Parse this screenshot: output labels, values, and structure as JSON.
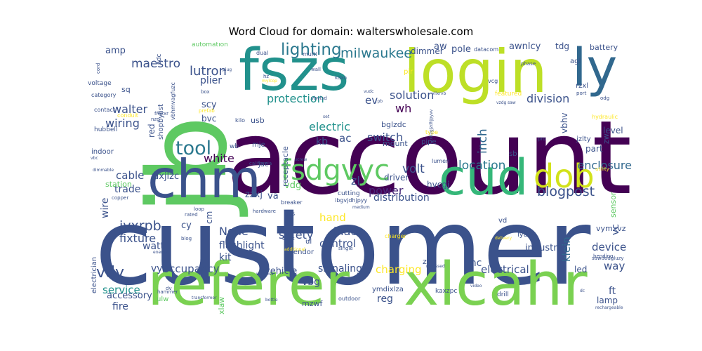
{
  "chart_data": {
    "type": "word_cloud",
    "title": "Word Cloud for domain: walterswholesale.com",
    "background": "#ffffff",
    "words": [
      {
        "text": "customer",
        "weight": 100,
        "color": "#3b528b"
      },
      {
        "text": "account",
        "weight": 82,
        "color": "#440154"
      },
      {
        "text": "jb",
        "weight": 78,
        "color": "#5ec962"
      },
      {
        "text": "referer",
        "weight": 55,
        "color": "#7ad151"
      },
      {
        "text": "login",
        "weight": 54,
        "color": "#bddf26"
      },
      {
        "text": "fszs",
        "weight": 53,
        "color": "#21918c"
      },
      {
        "text": "chm",
        "weight": 50,
        "color": "#3b528b"
      },
      {
        "text": "cud",
        "weight": 48,
        "color": "#35b779"
      },
      {
        "text": "xlcahr",
        "weight": 48,
        "color": "#7ad151"
      },
      {
        "text": "ly",
        "weight": 45,
        "color": "#31688e"
      },
      {
        "text": "dob",
        "weight": 30,
        "color": "#d2e21b"
      },
      {
        "text": "fsdgvyc",
        "weight": 28,
        "color": "#5ec962"
      },
      {
        "text": "tool",
        "weight": 22,
        "color": "#2a788e"
      },
      {
        "text": "lighting",
        "weight": 16,
        "color": "#2a788e"
      },
      {
        "text": "milwaukee",
        "weight": 14,
        "color": "#2a788e"
      },
      {
        "text": "blogpost",
        "weight": 15,
        "color": "#3b528b"
      },
      {
        "text": "vdy",
        "weight": 18,
        "color": "#3b528b"
      },
      {
        "text": "jyxrpb",
        "weight": 14,
        "color": "#3b528b"
      },
      {
        "text": "maestro",
        "weight": 13,
        "color": "#3b528b"
      },
      {
        "text": "lutron",
        "weight": 14,
        "color": "#3b528b"
      },
      {
        "text": "volt",
        "weight": 14,
        "color": "#3b528b"
      },
      {
        "text": "location",
        "weight": 13,
        "color": "#2a788e"
      },
      {
        "text": "enclosure",
        "weight": 13,
        "color": "#31688e"
      },
      {
        "text": "inch",
        "weight": 13,
        "color": "#31688e"
      },
      {
        "text": "electric",
        "weight": 13,
        "color": "#21918c"
      },
      {
        "text": "protection",
        "weight": 13,
        "color": "#21918c"
      },
      {
        "text": "solution",
        "weight": 13,
        "color": "#3b528b"
      },
      {
        "text": "division",
        "weight": 13,
        "color": "#3b528b"
      },
      {
        "text": "switch",
        "weight": 13,
        "color": "#3b528b"
      },
      {
        "text": "wiring",
        "weight": 13,
        "color": "#3b528b"
      },
      {
        "text": "walter",
        "weight": 13,
        "color": "#3b528b"
      },
      {
        "text": "white",
        "weight": 13,
        "color": "#440154"
      },
      {
        "text": "power",
        "weight": 13,
        "color": "#482878"
      },
      {
        "text": "None",
        "weight": 13,
        "color": "#3b528b"
      },
      {
        "text": "fixture",
        "weight": 13,
        "color": "#3b528b"
      },
      {
        "text": "safety",
        "weight": 12,
        "color": "#3b528b"
      },
      {
        "text": "black",
        "weight": 13,
        "color": "#3b528b"
      },
      {
        "text": "control",
        "weight": 12,
        "color": "#3b528b"
      },
      {
        "text": "hand",
        "weight": 12,
        "color": "#fde725"
      },
      {
        "text": "charging",
        "weight": 13,
        "color": "#fde725"
      },
      {
        "text": "electrical",
        "weight": 13,
        "color": "#3b528b"
      },
      {
        "text": "occupancy",
        "weight": 12,
        "color": "#3b528b"
      },
      {
        "text": "service",
        "weight": 12,
        "color": "#21918c"
      },
      {
        "text": "klein",
        "weight": 12,
        "color": "#31688e"
      },
      {
        "text": "device",
        "weight": 12,
        "color": "#3b528b"
      },
      {
        "text": "way",
        "weight": 12,
        "color": "#3b528b"
      },
      {
        "text": "cable",
        "weight": 12,
        "color": "#3b528b"
      },
      {
        "text": "trade",
        "weight": 11,
        "color": "#3b528b"
      },
      {
        "text": "wire",
        "weight": 11,
        "color": "#3b528b"
      },
      {
        "text": "signaling",
        "weight": 11,
        "color": "#3b528b"
      },
      {
        "text": "distribution",
        "weight": 11,
        "color": "#3b528b"
      },
      {
        "text": "flashlight",
        "weight": 11,
        "color": "#3b528b"
      },
      {
        "text": "watt",
        "weight": 11,
        "color": "#3b528b"
      },
      {
        "text": "kit",
        "weight": 11,
        "color": "#3b528b"
      },
      {
        "text": "vehicle",
        "weight": 10,
        "color": "#3b528b"
      },
      {
        "text": "industrial",
        "weight": 10,
        "color": "#3b528b"
      },
      {
        "text": "accessory",
        "weight": 10,
        "color": "#3b528b"
      },
      {
        "text": "fire",
        "weight": 11,
        "color": "#3b528b"
      },
      {
        "text": "reg",
        "weight": 11,
        "color": "#3b528b"
      },
      {
        "text": "ft",
        "weight": 11,
        "color": "#3b528b"
      },
      {
        "text": "lamp",
        "weight": 10,
        "color": "#3b528b"
      },
      {
        "text": "led",
        "weight": 10,
        "color": "#3b528b"
      },
      {
        "text": "vc",
        "weight": 10,
        "color": "#3b528b"
      },
      {
        "text": "vbg",
        "weight": 11,
        "color": "#3b528b"
      },
      {
        "text": "vy",
        "weight": 11,
        "color": "#3b528b"
      },
      {
        "text": "mc",
        "weight": 11,
        "color": "#3b528b"
      },
      {
        "text": "ac",
        "weight": 13,
        "color": "#3b528b"
      },
      {
        "text": "kb",
        "weight": 12,
        "color": "#3b528b"
      },
      {
        "text": "wh",
        "weight": 13,
        "color": "#440154"
      },
      {
        "text": "ev",
        "weight": 13,
        "color": "#3b528b"
      },
      {
        "text": "zl",
        "weight": 13,
        "color": "#3b528b"
      },
      {
        "text": "bglzdc",
        "weight": 10,
        "color": "#3b528b"
      },
      {
        "text": "hvcgj",
        "weight": 10,
        "color": "#3b528b"
      },
      {
        "text": "driver",
        "weight": 10,
        "color": "#3b528b"
      },
      {
        "text": "zzxj",
        "weight": 11,
        "color": "#3b528b"
      },
      {
        "text": "va",
        "weight": 11,
        "color": "#3b528b"
      },
      {
        "text": "vdg",
        "weight": 11,
        "color": "#5ec962"
      },
      {
        "text": "dxjlzc",
        "weight": 11,
        "color": "#3b528b"
      },
      {
        "text": "cm",
        "weight": 11,
        "color": "#3b528b"
      },
      {
        "text": "cy",
        "weight": 11,
        "color": "#3b528b"
      },
      {
        "text": "amp",
        "weight": 11,
        "color": "#3b528b"
      },
      {
        "text": "pole",
        "weight": 11,
        "color": "#3b528b"
      },
      {
        "text": "aw",
        "weight": 11,
        "color": "#3b528b"
      },
      {
        "text": "dimmer",
        "weight": 10,
        "color": "#3b528b"
      },
      {
        "text": "awnlcy",
        "weight": 10,
        "color": "#3b528b"
      },
      {
        "text": "tdg",
        "weight": 10,
        "color": "#3b528b"
      },
      {
        "text": "battery",
        "weight": 9,
        "color": "#3b528b"
      },
      {
        "text": "agl",
        "weight": 9,
        "color": "#3b528b"
      },
      {
        "text": "rzxl",
        "weight": 9,
        "color": "#3b528b"
      },
      {
        "text": "plier",
        "weight": 11,
        "color": "#3b528b"
      },
      {
        "text": "scy",
        "weight": 11,
        "color": "#3b528b"
      },
      {
        "text": "bvc",
        "weight": 10,
        "color": "#3b528b"
      },
      {
        "text": "sq",
        "weight": 10,
        "color": "#3b528b"
      },
      {
        "text": "red",
        "weight": 10,
        "color": "#3b528b"
      },
      {
        "text": "usb",
        "weight": 10,
        "color": "#3b528b"
      },
      {
        "text": "vbhv",
        "weight": 10,
        "color": "#3b528b"
      },
      {
        "text": "zw",
        "weight": 10,
        "color": "#3b528b"
      },
      {
        "text": "part",
        "weight": 10,
        "color": "#3b528b"
      },
      {
        "text": "level",
        "weight": 10,
        "color": "#3b528b"
      },
      {
        "text": "jzlty",
        "weight": 10,
        "color": "#3b528b"
      },
      {
        "text": "vymxvz",
        "weight": 10,
        "color": "#3b528b"
      },
      {
        "text": "station",
        "weight": 10,
        "color": "#5ec962"
      },
      {
        "text": "sensor",
        "weight": 10,
        "color": "#5ec962"
      },
      {
        "text": "electrician",
        "weight": 10,
        "color": "#3b528b"
      },
      {
        "text": "vd",
        "weight": 9,
        "color": "#3b528b"
      },
      {
        "text": "lyaw",
        "weight": 9,
        "color": "#3b528b"
      },
      {
        "text": "z",
        "weight": 9,
        "color": "#3b528b"
      },
      {
        "text": "xlaw",
        "weight": 10,
        "color": "#5ec962"
      },
      {
        "text": "ulw",
        "weight": 9,
        "color": "#5ec962"
      },
      {
        "text": "mzwf",
        "weight": 9,
        "color": "#3b528b"
      },
      {
        "text": "ymdixlza",
        "weight": 9,
        "color": "#3b528b"
      },
      {
        "text": "kaxzpc",
        "weight": 8,
        "color": "#3b528b"
      },
      {
        "text": "drill",
        "weight": 8,
        "color": "#3b528b"
      },
      {
        "text": "outdoor",
        "weight": 8,
        "color": "#3b528b"
      },
      {
        "text": "vendor",
        "weight": 9,
        "color": "#3b528b"
      },
      {
        "text": "ul",
        "weight": 9,
        "color": "#3b528b"
      },
      {
        "text": "mount",
        "weight": 9,
        "color": "#3b528b"
      },
      {
        "text": "pipe",
        "weight": 8,
        "color": "#3b528b"
      },
      {
        "text": "jac",
        "weight": 8,
        "color": "#3b528b"
      },
      {
        "text": "mje",
        "weight": 8,
        "color": "#3b528b"
      },
      {
        "text": "wb",
        "weight": 8,
        "color": "#3b528b"
      },
      {
        "text": "receptacle",
        "weight": 9,
        "color": "#3b528b"
      },
      {
        "text": "indoor",
        "weight": 9,
        "color": "#3b528b"
      },
      {
        "text": "hubbell",
        "weight": 8,
        "color": "#3b528b"
      },
      {
        "text": "voltage",
        "weight": 8,
        "color": "#3b528b"
      },
      {
        "text": "category",
        "weight": 7,
        "color": "#3b528b"
      },
      {
        "text": "contact",
        "weight": 7,
        "color": "#3b528b"
      },
      {
        "text": "shopbylist",
        "weight": 9,
        "color": "#3b528b"
      },
      {
        "text": "sdc",
        "weight": 8,
        "color": "#3b528b"
      },
      {
        "text": "vbhmvagfuzc",
        "weight": 7,
        "color": "#3b528b"
      },
      {
        "text": "automation",
        "weight": 8,
        "color": "#5ec962"
      },
      {
        "text": "dual",
        "weight": 7,
        "color": "#3b528b"
      },
      {
        "text": "multi",
        "weight": 7,
        "color": "#3b528b"
      },
      {
        "text": "wall",
        "weight": 7,
        "color": "#3b528b"
      },
      {
        "text": "pir",
        "weight": 8,
        "color": "#fde725"
      },
      {
        "text": "datacom",
        "weight": 7,
        "color": "#3b528b"
      },
      {
        "text": "featured",
        "weight": 8,
        "color": "#fde725"
      },
      {
        "text": "vcg",
        "weight": 7,
        "color": "#3b528b"
      },
      {
        "text": "phase",
        "weight": 6,
        "color": "#3b528b"
      },
      {
        "text": "port",
        "weight": 6,
        "color": "#3b528b"
      },
      {
        "text": "odg",
        "weight": 6,
        "color": "#3b528b"
      },
      {
        "text": "hydraulic",
        "weight": 7,
        "color": "#fde725"
      },
      {
        "text": "utility",
        "weight": 6,
        "color": "#fde725"
      },
      {
        "text": "bending",
        "weight": 6,
        "color": "#3b528b"
      },
      {
        "text": "sawdodgluzy",
        "weight": 6,
        "color": "#3b528b"
      },
      {
        "text": "rechargeable",
        "weight": 6,
        "color": "#3b528b"
      },
      {
        "text": "pro",
        "weight": 6,
        "color": "#3b528b"
      },
      {
        "text": "sb",
        "weight": 8,
        "color": "#3b528b"
      },
      {
        "text": "lumen",
        "weight": 7,
        "color": "#3b528b"
      },
      {
        "text": "type",
        "weight": 7,
        "color": "#fde725"
      },
      {
        "text": "cutting",
        "weight": 8,
        "color": "#3b528b"
      },
      {
        "text": "ibgvjdhjpyy",
        "weight": 7,
        "color": "#3b528b"
      },
      {
        "text": "hardware",
        "weight": 6,
        "color": "#3b528b"
      },
      {
        "text": "breaker",
        "weight": 7,
        "color": "#3b528b"
      },
      {
        "text": "ops",
        "weight": 7,
        "color": "#3b528b"
      },
      {
        "text": "smart",
        "weight": 6,
        "color": "#3b528b"
      },
      {
        "text": "additional",
        "weight": 6,
        "color": "#fde725"
      },
      {
        "text": "medium",
        "weight": 6,
        "color": "#3b528b"
      },
      {
        "text": "single",
        "weight": 6,
        "color": "#3b528b"
      },
      {
        "text": "charger",
        "weight": 7,
        "color": "#fde725"
      },
      {
        "text": "recessed",
        "weight": 6,
        "color": "#3b528b"
      },
      {
        "text": "video",
        "weight": 6,
        "color": "#3b528b"
      },
      {
        "text": "dc",
        "weight": 6,
        "color": "#3b528b"
      },
      {
        "text": "delivery",
        "weight": 6,
        "color": "#fde725"
      },
      {
        "text": "energy",
        "weight": 6,
        "color": "#3b528b"
      },
      {
        "text": "copper",
        "weight": 7,
        "color": "#3b528b"
      },
      {
        "text": "california",
        "weight": 7,
        "color": "#3b528b"
      },
      {
        "text": "screw",
        "weight": 6,
        "color": "#3b528b"
      },
      {
        "text": "loop",
        "weight": 6,
        "color": "#3b528b"
      },
      {
        "text": "rated",
        "weight": 6,
        "color": "#3b528b"
      },
      {
        "text": "blog",
        "weight": 6,
        "color": "#3b528b"
      },
      {
        "text": "wireless",
        "weight": 6,
        "color": "#3b528b"
      },
      {
        "text": "dv",
        "weight": 6,
        "color": "#3b528b"
      },
      {
        "text": "hammer",
        "weight": 6,
        "color": "#3b528b"
      },
      {
        "text": "transformer",
        "weight": 6,
        "color": "#3b528b"
      },
      {
        "text": "bottle",
        "weight": 6,
        "color": "#3b528b"
      },
      {
        "text": "kilo",
        "weight": 7,
        "color": "#3b528b"
      },
      {
        "text": "prefab",
        "weight": 6,
        "color": "#fde725"
      },
      {
        "text": "conduit",
        "weight": 7,
        "color": "#fde725"
      },
      {
        "text": "fmzxr",
        "weight": 6,
        "color": "#3b528b"
      },
      {
        "text": "nzq",
        "weight": 6,
        "color": "#3b528b"
      },
      {
        "text": "vbc",
        "weight": 6,
        "color": "#3b528b"
      },
      {
        "text": "dimmable",
        "weight": 6,
        "color": "#3b528b"
      },
      {
        "text": "cord",
        "weight": 6,
        "color": "#3b528b"
      },
      {
        "text": "plug",
        "weight": 6,
        "color": "#3b528b"
      },
      {
        "text": "hz",
        "weight": 6,
        "color": "#3b528b"
      },
      {
        "text": "mylcop",
        "weight": 6,
        "color": "#fde725"
      },
      {
        "text": "kdxn",
        "weight": 6,
        "color": "#3b528b"
      },
      {
        "text": "rpb",
        "weight": 6,
        "color": "#3b528b"
      },
      {
        "text": "vbvlsd",
        "weight": 6,
        "color": "#3b528b"
      },
      {
        "text": "vudc",
        "weight": 6,
        "color": "#3b528b"
      },
      {
        "text": "box",
        "weight": 7,
        "color": "#3b528b"
      },
      {
        "text": "set",
        "weight": 6,
        "color": "#3b528b"
      },
      {
        "text": "vllxrvb",
        "weight": 6,
        "color": "#3b528b"
      },
      {
        "text": "saw",
        "weight": 6,
        "color": "#3b528b"
      },
      {
        "text": "vzdg",
        "weight": 6,
        "color": "#3b528b"
      },
      {
        "text": "zxitzgjzdhjpyvv",
        "weight": 6,
        "color": "#3b528b"
      }
    ]
  }
}
